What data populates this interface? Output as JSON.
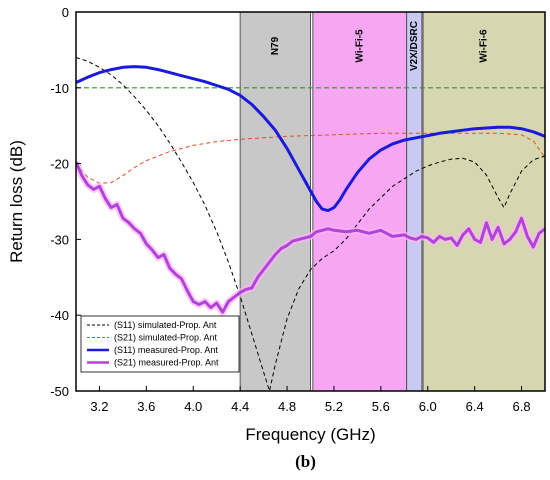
{
  "chart_data": {
    "type": "line",
    "xlabel": "Frequency (GHz)",
    "ylabel": "Return loss (dB)",
    "caption": "(b)",
    "xlim": [
      3.0,
      7.0
    ],
    "ylim": [
      -50,
      0
    ],
    "x_ticks": [
      3.2,
      3.6,
      4.0,
      4.4,
      4.8,
      5.2,
      5.6,
      6.0,
      6.4,
      6.8
    ],
    "x_tick_labels": [
      "3.2",
      "3.6",
      "4.0",
      "4.4",
      "4.8",
      "5.2",
      "5.6",
      "6.0",
      "6.4",
      "6.8"
    ],
    "y_ticks": [
      -50,
      -40,
      -30,
      -20,
      -10,
      0
    ],
    "y_tick_labels": [
      "-50",
      "-40",
      "-30",
      "-20",
      "-10",
      "0"
    ],
    "bands": [
      {
        "label": "N79",
        "start": 4.4,
        "end": 5.0,
        "color": "#c8c8c8"
      },
      {
        "label": "Wi-Fi-5",
        "start": 5.02,
        "end": 5.82,
        "color": "#f6a6f2"
      },
      {
        "label": "V2X/DSRC",
        "start": 5.82,
        "end": 5.95,
        "color": "#c9caf2"
      },
      {
        "label": "Wi-Fi-6",
        "start": 5.96,
        "end": 7.0,
        "color": "#d6d6b0"
      }
    ],
    "reference_line": {
      "y": -10,
      "color": "#2a9a2a"
    },
    "series": [
      {
        "name": "(S11) simulated-Prop. Ant",
        "color": "#000000",
        "style": "dashed",
        "x": [
          3.0,
          3.1,
          3.2,
          3.3,
          3.4,
          3.5,
          3.6,
          3.7,
          3.8,
          3.9,
          4.0,
          4.1,
          4.2,
          4.3,
          4.4,
          4.5,
          4.6,
          4.65,
          4.7,
          4.8,
          4.9,
          5.0,
          5.1,
          5.2,
          5.3,
          5.4,
          5.5,
          5.6,
          5.7,
          5.8,
          5.9,
          6.0,
          6.1,
          6.2,
          6.3,
          6.4,
          6.5,
          6.6,
          6.65,
          6.7,
          6.8,
          6.9,
          7.0
        ],
        "y": [
          -6.0,
          -6.5,
          -7.3,
          -8.3,
          -9.6,
          -11.2,
          -13.0,
          -15.0,
          -17.3,
          -19.8,
          -22.5,
          -25.5,
          -29.0,
          -33.0,
          -37.5,
          -42.5,
          -47.5,
          -50.0,
          -46.5,
          -40.5,
          -36.5,
          -34.0,
          -32.5,
          -31.5,
          -30.0,
          -28.0,
          -26.0,
          -24.5,
          -23.0,
          -22.0,
          -21.0,
          -20.3,
          -19.8,
          -19.4,
          -19.3,
          -19.8,
          -21.5,
          -24.5,
          -25.8,
          -24.0,
          -21.0,
          -19.5,
          -19.0
        ]
      },
      {
        "name": "(S21) simulated-Prop. Ant",
        "color": "#e0501e",
        "style": "dashed",
        "x": [
          3.0,
          3.1,
          3.2,
          3.3,
          3.4,
          3.5,
          3.6,
          3.8,
          4.0,
          4.2,
          4.4,
          4.6,
          4.8,
          5.0,
          5.2,
          5.4,
          5.6,
          5.8,
          6.0,
          6.2,
          6.4,
          6.6,
          6.8,
          6.9,
          7.0
        ],
        "y": [
          -20.0,
          -21.8,
          -22.6,
          -22.5,
          -21.6,
          -20.5,
          -19.6,
          -18.4,
          -17.6,
          -17.1,
          -16.8,
          -16.6,
          -16.4,
          -16.3,
          -16.2,
          -16.1,
          -16.0,
          -16.0,
          -16.0,
          -16.0,
          -16.0,
          -16.0,
          -16.2,
          -17.0,
          -19.2
        ]
      },
      {
        "name": "(S11) measured-Prop. Ant",
        "color": "#1a1adc",
        "style": "solid",
        "x": [
          3.0,
          3.1,
          3.2,
          3.3,
          3.4,
          3.5,
          3.6,
          3.7,
          3.8,
          3.9,
          4.0,
          4.1,
          4.2,
          4.3,
          4.4,
          4.5,
          4.6,
          4.7,
          4.8,
          4.9,
          5.0,
          5.05,
          5.1,
          5.15,
          5.2,
          5.25,
          5.3,
          5.4,
          5.5,
          5.6,
          5.7,
          5.8,
          5.9,
          6.0,
          6.1,
          6.2,
          6.3,
          6.4,
          6.5,
          6.6,
          6.7,
          6.8,
          6.9,
          7.0
        ],
        "y": [
          -9.3,
          -8.6,
          -8.0,
          -7.6,
          -7.3,
          -7.2,
          -7.3,
          -7.6,
          -8.0,
          -8.4,
          -8.8,
          -9.2,
          -9.7,
          -10.2,
          -11.0,
          -12.2,
          -13.8,
          -15.6,
          -18.0,
          -20.8,
          -23.6,
          -25.0,
          -26.0,
          -26.2,
          -25.8,
          -24.8,
          -23.5,
          -21.2,
          -19.4,
          -18.2,
          -17.4,
          -16.9,
          -16.6,
          -16.3,
          -16.0,
          -15.8,
          -15.6,
          -15.4,
          -15.3,
          -15.2,
          -15.2,
          -15.4,
          -15.8,
          -16.4
        ]
      },
      {
        "name": "(S21) measured-Prop. Ant",
        "color": "#b044d8",
        "style": "solid",
        "x": [
          3.0,
          3.05,
          3.1,
          3.15,
          3.2,
          3.25,
          3.3,
          3.35,
          3.4,
          3.45,
          3.5,
          3.55,
          3.6,
          3.65,
          3.7,
          3.75,
          3.8,
          3.85,
          3.9,
          3.95,
          4.0,
          4.05,
          4.1,
          4.15,
          4.2,
          4.25,
          4.3,
          4.35,
          4.4,
          4.45,
          4.5,
          4.55,
          4.6,
          4.65,
          4.7,
          4.75,
          4.8,
          4.85,
          4.9,
          4.95,
          5.0,
          5.05,
          5.1,
          5.15,
          5.2,
          5.3,
          5.4,
          5.5,
          5.6,
          5.7,
          5.8,
          5.85,
          5.9,
          5.95,
          6.0,
          6.05,
          6.1,
          6.15,
          6.2,
          6.25,
          6.3,
          6.35,
          6.4,
          6.45,
          6.5,
          6.55,
          6.6,
          6.65,
          6.7,
          6.75,
          6.8,
          6.85,
          6.9,
          6.95,
          7.0
        ],
        "y": [
          -19.8,
          -21.6,
          -22.8,
          -23.4,
          -23.0,
          -24.6,
          -25.8,
          -25.4,
          -27.2,
          -27.8,
          -28.6,
          -29.2,
          -30.6,
          -31.4,
          -32.4,
          -32.0,
          -33.8,
          -34.6,
          -35.2,
          -36.8,
          -38.2,
          -38.6,
          -38.2,
          -39.0,
          -38.4,
          -39.6,
          -38.2,
          -37.6,
          -37.0,
          -36.6,
          -36.4,
          -35.0,
          -34.0,
          -33.0,
          -32.0,
          -31.2,
          -30.8,
          -30.2,
          -30.0,
          -29.8,
          -29.6,
          -29.0,
          -28.8,
          -28.6,
          -28.8,
          -29.0,
          -28.8,
          -29.2,
          -28.8,
          -29.6,
          -29.4,
          -29.8,
          -30.0,
          -29.6,
          -29.8,
          -30.4,
          -29.6,
          -30.0,
          -29.8,
          -30.8,
          -29.4,
          -28.6,
          -30.0,
          -30.4,
          -27.8,
          -30.0,
          -28.4,
          -30.6,
          -30.0,
          -29.0,
          -27.2,
          -29.6,
          -31.0,
          -29.2,
          -28.6
        ]
      }
    ]
  }
}
